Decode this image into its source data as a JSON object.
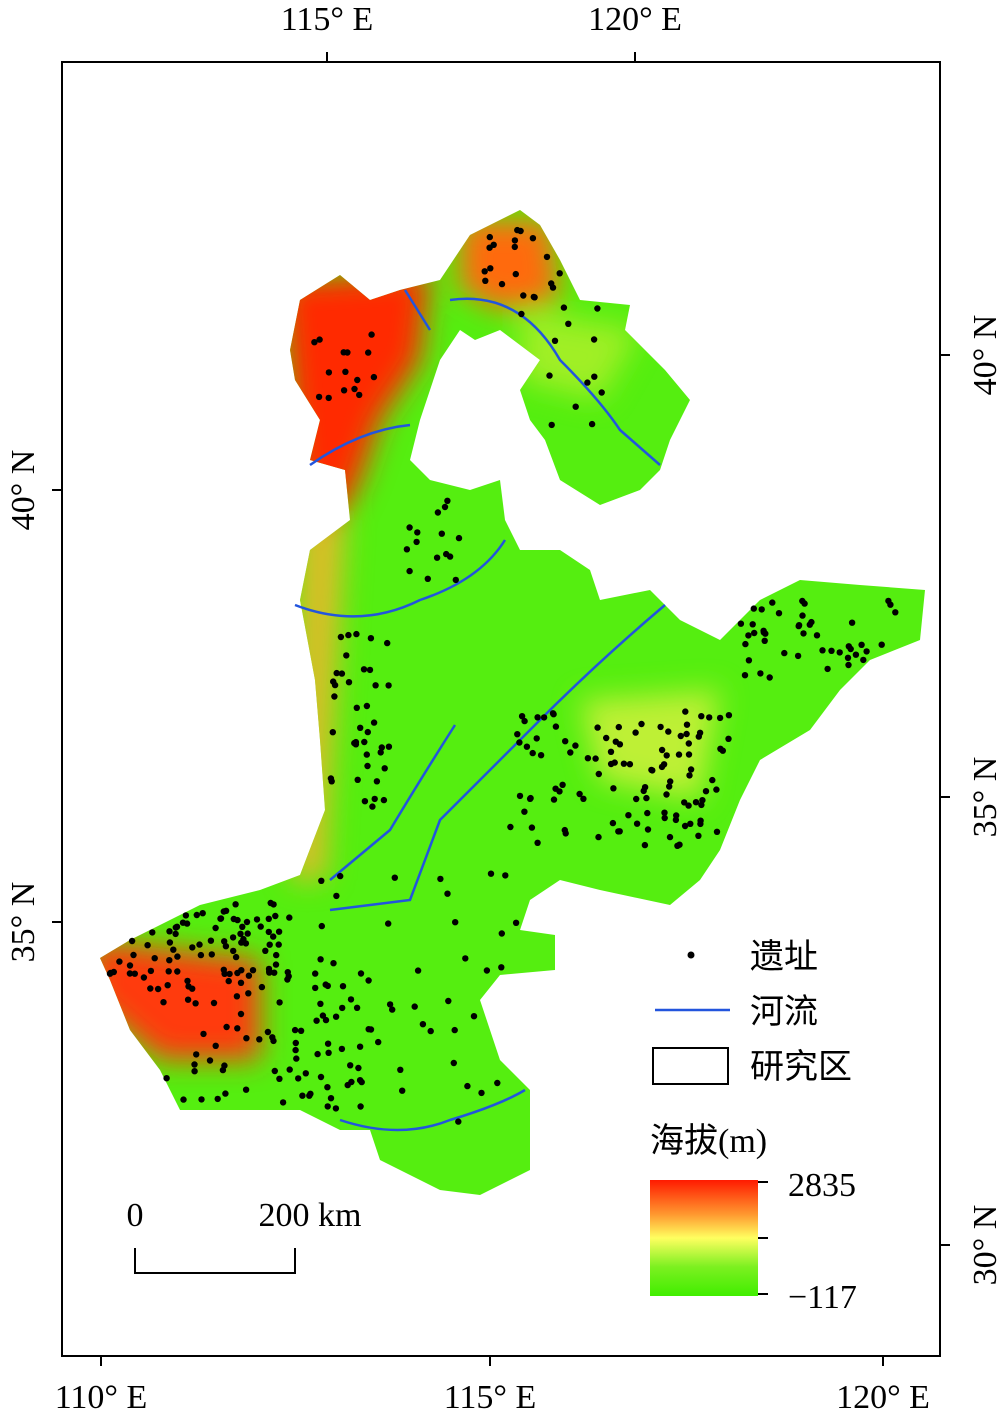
{
  "axes": {
    "top": [
      "115° E",
      "120° E"
    ],
    "bottom": [
      "110° E",
      "115° E",
      "120° E"
    ],
    "left": [
      "40° N",
      "35° N"
    ],
    "right": [
      "40° N",
      "35° N",
      "30° N"
    ]
  },
  "legend": {
    "items": [
      "遗址",
      "河流",
      "研究区"
    ],
    "elevation_title": "海拔(m)",
    "elevation_max": "2835",
    "elevation_min": "−117"
  },
  "scale_bar": {
    "start": "0",
    "end": "200 km"
  }
}
